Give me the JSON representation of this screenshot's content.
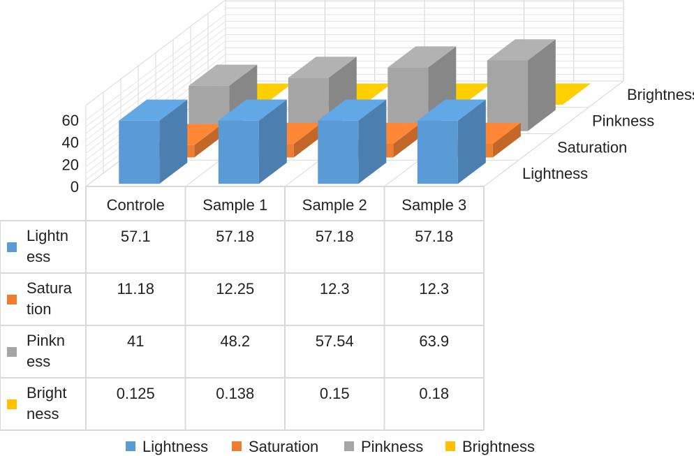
{
  "chart_data": {
    "type": "bar",
    "subtype": "3d-clustered-with-data-table",
    "categories": [
      "Controle",
      "Sample 1",
      "Sample 2",
      "Sample 3"
    ],
    "series": [
      {
        "name": "Lightness",
        "row_label": [
          "Lightn",
          "ess"
        ],
        "values": [
          57.1,
          57.18,
          57.18,
          57.18
        ],
        "display": [
          "57.1",
          "57.18",
          "57.18",
          "57.18"
        ],
        "color": "#5b9bd5"
      },
      {
        "name": "Saturation",
        "row_label": [
          "Satura",
          "tion"
        ],
        "values": [
          11.18,
          12.25,
          12.3,
          12.3
        ],
        "display": [
          "11.18",
          "12.25",
          "12.3",
          "12.3"
        ],
        "color": "#ed7d31"
      },
      {
        "name": "Pinkness",
        "row_label": [
          "Pinkn",
          "ess"
        ],
        "values": [
          41,
          48.2,
          57.54,
          63.9
        ],
        "display": [
          "41",
          "48.2",
          "57.54",
          "63.9"
        ],
        "color": "#a5a5a5"
      },
      {
        "name": "Brightness",
        "row_label": [
          "Bright",
          "ness"
        ],
        "values": [
          0.125,
          0.138,
          0.15,
          0.18
        ],
        "display": [
          "0.125",
          "0.138",
          "0.15",
          "0.18"
        ],
        "color": "#ffc000"
      }
    ],
    "depth_labels": [
      "Lightness",
      "Saturation",
      "Pinkness",
      "Brightness"
    ],
    "y_ticks": [
      "0",
      "20",
      "40",
      "60"
    ],
    "ylim": [
      0,
      60
    ],
    "grid": true,
    "legend_position": "bottom"
  }
}
